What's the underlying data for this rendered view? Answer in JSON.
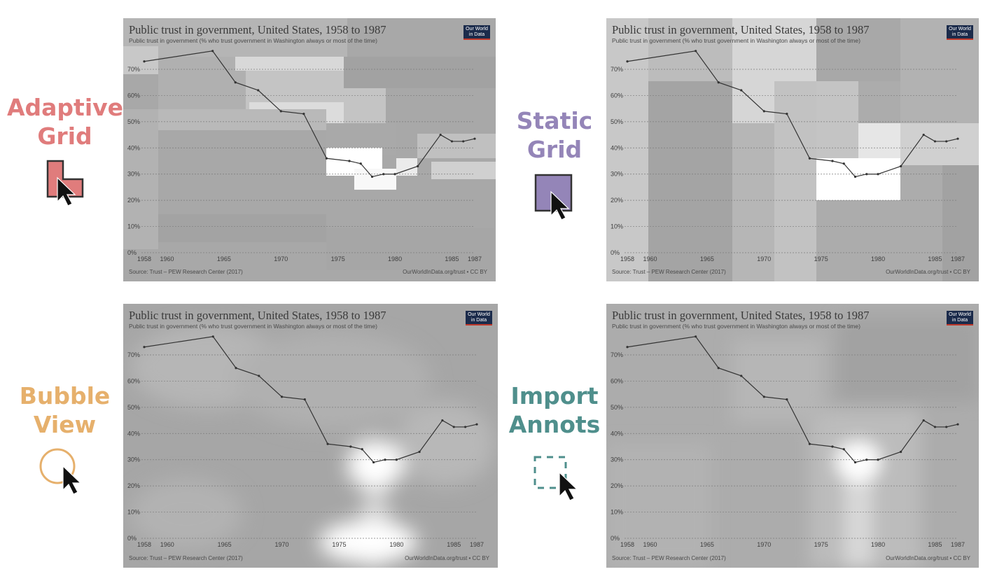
{
  "methods": [
    {
      "id": "adaptive",
      "lines": [
        "Adaptive",
        "Grid"
      ],
      "color": "#e07c7c",
      "icon": "adaptive-grid-icon"
    },
    {
      "id": "static",
      "lines": [
        "Static",
        "Grid"
      ],
      "color": "#9485b8",
      "icon": "static-grid-icon"
    },
    {
      "id": "bubble",
      "lines": [
        "Bubble",
        "View"
      ],
      "color": "#e6b06c",
      "icon": "bubble-view-icon"
    },
    {
      "id": "import",
      "lines": [
        "Import",
        "Annots"
      ],
      "color": "#4f8f8c",
      "icon": "import-annots-icon"
    }
  ],
  "panel": {
    "title": "Public trust in government, United States, 1958 to 1987",
    "subtitle": "Public trust in government (% who trust government in Washington always or most of the time)",
    "logo_line1": "Our World",
    "logo_line2": "in Data",
    "source": "Source: Trust – PEW Research Center (2017)",
    "license": "OurWorldInData.org/trust • CC BY"
  },
  "chart_data": {
    "type": "line",
    "title": "Public trust in government, United States, 1958 to 1987",
    "subtitle": "Public trust in government (% who trust government in Washington always or most of the time)",
    "x": [
      1958,
      1964,
      1966,
      1968,
      1970,
      1972,
      1974,
      1976,
      1977,
      1978,
      1979,
      1980,
      1982,
      1984,
      1985,
      1986,
      1987
    ],
    "values": [
      73,
      77,
      65,
      62,
      54,
      53,
      36,
      35,
      34,
      29,
      30,
      30,
      33,
      45,
      42.5,
      42.5,
      43.5
    ],
    "xticks": [
      "1958",
      "1960",
      "1965",
      "1970",
      "1975",
      "1980",
      "1985",
      "1987"
    ],
    "xtick_values": [
      1958,
      1960,
      1965,
      1970,
      1975,
      1980,
      1985,
      1987
    ],
    "yticks": [
      "0%",
      "10%",
      "20%",
      "30%",
      "40%",
      "50%",
      "60%",
      "70%"
    ],
    "ytick_values": [
      0,
      10,
      20,
      30,
      40,
      50,
      60,
      70
    ],
    "xlim": [
      1958,
      1987
    ],
    "ylim": [
      0,
      70
    ],
    "grid": "horizontal dotted",
    "line_color": "#333333"
  }
}
